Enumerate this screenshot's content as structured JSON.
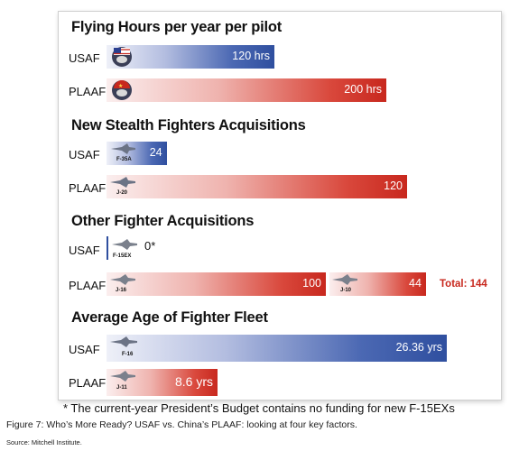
{
  "colors": {
    "usaf": "#2f4f9f",
    "plaaf": "#c8281e",
    "total": "#c8281e"
  },
  "chart_data": [
    {
      "type": "bar",
      "title": "Flying Hours per year per pilot",
      "categories": [
        "USAF",
        "PLAAF"
      ],
      "values": [
        120,
        200
      ],
      "value_labels": [
        "120 hrs",
        "200 hrs"
      ],
      "icons": [
        "usaf-pilot-helmet-icon",
        "plaaf-pilot-helmet-icon"
      ]
    },
    {
      "type": "bar",
      "title": "New Stealth Fighters Acquisitions",
      "categories": [
        "USAF",
        "PLAAF"
      ],
      "values": [
        24,
        120
      ],
      "value_labels": [
        "24",
        "120"
      ],
      "aircraft": [
        "F-35A",
        "J-20"
      ]
    },
    {
      "type": "bar",
      "title": "Other Fighter Acquisitions",
      "categories": [
        "USAF",
        "PLAAF"
      ],
      "series": [
        {
          "values": [
            0,
            100
          ],
          "value_labels": [
            "0*",
            "100"
          ],
          "aircraft": [
            "F-15EX",
            "J-16"
          ]
        },
        {
          "values": [
            null,
            44
          ],
          "value_labels": [
            null,
            "44"
          ],
          "aircraft": [
            null,
            "J-10"
          ]
        }
      ],
      "total_label": "Total: 144"
    },
    {
      "type": "bar",
      "title": "Average Age of Fighter Fleet",
      "categories": [
        "USAF",
        "PLAAF"
      ],
      "values": [
        26.36,
        8.6
      ],
      "value_labels": [
        "26.36 yrs",
        "8.6 yrs"
      ],
      "aircraft": [
        "F-16",
        "J-11"
      ]
    }
  ],
  "footnote": "* The current-year President’s Budget contains no funding for new F-15EXs",
  "caption": "Figure 7: Who’s More Ready? USAF vs. China’s PLAAF: looking at four key factors.",
  "source": "Source: Mitchell Institute."
}
